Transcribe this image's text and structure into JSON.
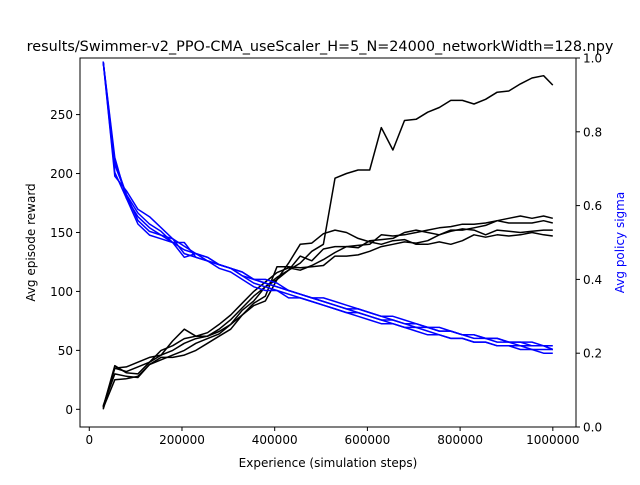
{
  "chart_data": {
    "type": "line",
    "title": "results/Swimmer-v2_PPO-CMA_useScaler_H=5_N=24000_networkWidth=128.npy",
    "xlabel": "Experience (simulation steps)",
    "ylabel": "Avg episode reward",
    "y2label": "Avg policy sigma",
    "xlim": [
      -20000,
      1050000
    ],
    "ylim": [
      -15,
      298
    ],
    "y2lim": [
      0.0,
      1.0
    ],
    "x_ticks": [
      0,
      200000,
      400000,
      600000,
      800000,
      1000000
    ],
    "y_ticks": [
      0,
      50,
      100,
      150,
      200,
      250
    ],
    "y2_ticks": [
      0.0,
      0.2,
      0.4,
      0.6,
      0.8,
      1.0
    ],
    "x_tick_labels": [
      "0",
      "200000",
      "400000",
      "600000",
      "800000",
      "1000000"
    ],
    "y_tick_labels": [
      "0",
      "50",
      "100",
      "150",
      "200",
      "250"
    ],
    "y2_tick_labels": [
      "0.0",
      "0.2",
      "0.4",
      "0.6",
      "0.8",
      "1.0"
    ],
    "grid": false,
    "colors": {
      "reward": "#000000",
      "sigma": "#0000ff",
      "frame": "#000000"
    },
    "reward_series": [
      {
        "x": [
          30000,
          55000,
          80000,
          105000,
          130000,
          155000,
          180000,
          205000,
          230000,
          255000,
          280000,
          305000,
          330000,
          355000,
          380000,
          405000,
          430000,
          455000,
          480000,
          505000,
          530000,
          555000,
          580000,
          605000,
          630000,
          655000,
          680000,
          705000,
          730000,
          755000,
          780000,
          805000,
          830000,
          855000,
          880000,
          905000,
          930000,
          955000,
          980000,
          1000000
        ],
        "y": [
          0,
          35,
          36,
          40,
          44,
          46,
          58,
          68,
          62,
          62,
          66,
          72,
          84,
          92,
          104,
          112,
          118,
          124,
          134,
          140,
          196,
          200,
          203,
          203,
          239,
          220,
          245,
          246,
          252,
          256,
          262,
          262,
          259,
          263,
          269,
          270,
          276,
          281,
          283,
          275
        ]
      },
      {
        "x": [
          30000,
          55000,
          80000,
          105000,
          130000,
          155000,
          180000,
          205000,
          230000,
          255000,
          280000,
          305000,
          330000,
          355000,
          380000,
          405000,
          430000,
          455000,
          480000,
          505000,
          530000,
          555000,
          580000,
          605000,
          630000,
          655000,
          680000,
          705000,
          730000,
          755000,
          780000,
          805000,
          830000,
          855000,
          880000,
          905000,
          930000,
          955000,
          980000,
          1000000
        ],
        "y": [
          2,
          37,
          31,
          30,
          40,
          50,
          54,
          60,
          62,
          65,
          72,
          80,
          90,
          100,
          108,
          116,
          120,
          118,
          122,
          127,
          133,
          138,
          137,
          143,
          144,
          145,
          150,
          152,
          150,
          148,
          151,
          153,
          152,
          148,
          152,
          151,
          150,
          151,
          152,
          152
        ]
      },
      {
        "x": [
          30000,
          55000,
          80000,
          105000,
          130000,
          155000,
          180000,
          205000,
          230000,
          255000,
          280000,
          305000,
          330000,
          355000,
          380000,
          405000,
          430000,
          455000,
          480000,
          505000,
          530000,
          555000,
          580000,
          605000,
          630000,
          655000,
          680000,
          705000,
          730000,
          755000,
          780000,
          805000,
          830000,
          855000,
          880000,
          905000,
          930000,
          955000,
          980000,
          1000000
        ],
        "y": [
          3,
          30,
          28,
          27,
          38,
          44,
          44,
          46,
          50,
          56,
          62,
          68,
          80,
          90,
          96,
          121,
          121,
          120,
          121,
          122,
          130,
          130,
          131,
          134,
          138,
          140,
          142,
          141,
          143,
          148,
          152,
          152,
          154,
          156,
          160,
          158,
          158,
          158,
          160,
          158
        ]
      },
      {
        "x": [
          30000,
          55000,
          80000,
          105000,
          130000,
          155000,
          180000,
          205000,
          230000,
          255000,
          280000,
          305000,
          330000,
          355000,
          380000,
          405000,
          430000,
          455000,
          480000,
          505000,
          530000,
          555000,
          580000,
          605000,
          630000,
          655000,
          680000,
          705000,
          730000,
          755000,
          780000,
          805000,
          830000,
          855000,
          880000,
          905000,
          930000,
          955000,
          980000,
          1000000
        ],
        "y": [
          1,
          25,
          26,
          28,
          38,
          42,
          46,
          50,
          56,
          60,
          64,
          72,
          80,
          88,
          92,
          110,
          124,
          140,
          141,
          149,
          152,
          150,
          145,
          142,
          140,
          143,
          144,
          140,
          140,
          142,
          140,
          143,
          148,
          146,
          148,
          147,
          148,
          150,
          148,
          147
        ]
      },
      {
        "x": [
          30000,
          55000,
          80000,
          105000,
          130000,
          155000,
          180000,
          205000,
          230000,
          255000,
          280000,
          305000,
          330000,
          355000,
          380000,
          405000,
          430000,
          455000,
          480000,
          505000,
          530000,
          555000,
          580000,
          605000,
          630000,
          655000,
          680000,
          705000,
          730000,
          755000,
          780000,
          805000,
          830000,
          855000,
          880000,
          905000,
          930000,
          955000,
          980000,
          1000000
        ],
        "y": [
          2,
          35,
          32,
          36,
          40,
          46,
          50,
          56,
          60,
          62,
          68,
          76,
          86,
          96,
          104,
          110,
          118,
          130,
          126,
          136,
          138,
          138,
          139,
          140,
          148,
          147,
          148,
          150,
          152,
          154,
          155,
          157,
          157,
          158,
          160,
          162,
          164,
          162,
          164,
          162
        ]
      }
    ],
    "sigma_series": [
      {
        "x": [
          30000,
          55000,
          80000,
          105000,
          130000,
          155000,
          180000,
          205000,
          230000,
          255000,
          280000,
          305000,
          330000,
          355000,
          380000,
          405000,
          430000,
          455000,
          480000,
          505000,
          530000,
          555000,
          580000,
          605000,
          630000,
          655000,
          680000,
          705000,
          730000,
          755000,
          780000,
          805000,
          830000,
          855000,
          880000,
          905000,
          930000,
          955000,
          980000,
          1000000
        ],
        "y": [
          0.99,
          0.72,
          0.63,
          0.56,
          0.53,
          0.52,
          0.51,
          0.49,
          0.47,
          0.46,
          0.44,
          0.43,
          0.42,
          0.4,
          0.4,
          0.39,
          0.37,
          0.36,
          0.35,
          0.34,
          0.33,
          0.32,
          0.31,
          0.3,
          0.29,
          0.28,
          0.27,
          0.27,
          0.26,
          0.25,
          0.24,
          0.24,
          0.23,
          0.23,
          0.22,
          0.22,
          0.21,
          0.21,
          0.2,
          0.2
        ]
      },
      {
        "x": [
          30000,
          55000,
          80000,
          105000,
          130000,
          155000,
          180000,
          205000,
          230000,
          255000,
          280000,
          305000,
          330000,
          355000,
          380000,
          405000,
          430000,
          455000,
          480000,
          505000,
          530000,
          555000,
          580000,
          605000,
          630000,
          655000,
          680000,
          705000,
          730000,
          755000,
          780000,
          805000,
          830000,
          855000,
          880000,
          905000,
          930000,
          955000,
          980000,
          1000000
        ],
        "y": [
          0.99,
          0.68,
          0.64,
          0.59,
          0.57,
          0.54,
          0.51,
          0.47,
          0.46,
          0.45,
          0.44,
          0.43,
          0.41,
          0.39,
          0.38,
          0.37,
          0.35,
          0.35,
          0.34,
          0.33,
          0.32,
          0.31,
          0.3,
          0.29,
          0.28,
          0.28,
          0.27,
          0.26,
          0.25,
          0.25,
          0.24,
          0.24,
          0.23,
          0.23,
          0.22,
          0.22,
          0.22,
          0.21,
          0.21,
          0.21
        ]
      },
      {
        "x": [
          30000,
          55000,
          80000,
          105000,
          130000,
          155000,
          180000,
          205000,
          230000,
          255000,
          280000,
          305000,
          330000,
          355000,
          380000,
          405000,
          430000,
          455000,
          480000,
          505000,
          530000,
          555000,
          580000,
          605000,
          630000,
          655000,
          680000,
          705000,
          730000,
          755000,
          780000,
          805000,
          830000,
          855000,
          880000,
          905000,
          930000,
          955000,
          980000,
          1000000
        ],
        "y": [
          0.99,
          0.73,
          0.62,
          0.55,
          0.52,
          0.51,
          0.5,
          0.46,
          0.47,
          0.45,
          0.43,
          0.42,
          0.4,
          0.38,
          0.37,
          0.37,
          0.36,
          0.35,
          0.34,
          0.33,
          0.32,
          0.31,
          0.31,
          0.3,
          0.29,
          0.29,
          0.28,
          0.27,
          0.27,
          0.26,
          0.26,
          0.25,
          0.24,
          0.24,
          0.23,
          0.23,
          0.22,
          0.22,
          0.22,
          0.21
        ]
      },
      {
        "x": [
          30000,
          55000,
          80000,
          105000,
          130000,
          155000,
          180000,
          205000,
          230000,
          255000,
          280000,
          305000,
          330000,
          355000,
          380000,
          405000,
          430000,
          455000,
          480000,
          505000,
          530000,
          555000,
          580000,
          605000,
          630000,
          655000,
          680000,
          705000,
          730000,
          755000,
          780000,
          805000,
          830000,
          855000,
          880000,
          905000,
          930000,
          955000,
          980000,
          1000000
        ],
        "y": [
          0.99,
          0.69,
          0.62,
          0.57,
          0.54,
          0.52,
          0.5,
          0.5,
          0.46,
          0.45,
          0.44,
          0.43,
          0.41,
          0.4,
          0.39,
          0.38,
          0.37,
          0.36,
          0.35,
          0.34,
          0.33,
          0.32,
          0.32,
          0.31,
          0.3,
          0.29,
          0.28,
          0.28,
          0.27,
          0.26,
          0.26,
          0.25,
          0.25,
          0.24,
          0.24,
          0.23,
          0.23,
          0.22,
          0.22,
          0.21
        ]
      },
      {
        "x": [
          30000,
          55000,
          80000,
          105000,
          130000,
          155000,
          180000,
          205000,
          230000,
          255000,
          280000,
          305000,
          330000,
          355000,
          380000,
          405000,
          430000,
          455000,
          480000,
          505000,
          530000,
          555000,
          580000,
          605000,
          630000,
          655000,
          680000,
          705000,
          730000,
          755000,
          780000,
          805000,
          830000,
          855000,
          880000,
          905000,
          930000,
          955000,
          980000,
          1000000
        ],
        "y": [
          0.99,
          0.71,
          0.63,
          0.58,
          0.55,
          0.53,
          0.5,
          0.48,
          0.47,
          0.46,
          0.44,
          0.43,
          0.42,
          0.4,
          0.39,
          0.38,
          0.37,
          0.36,
          0.35,
          0.35,
          0.34,
          0.33,
          0.32,
          0.31,
          0.3,
          0.3,
          0.29,
          0.28,
          0.27,
          0.27,
          0.26,
          0.25,
          0.25,
          0.24,
          0.24,
          0.23,
          0.23,
          0.23,
          0.22,
          0.22
        ]
      }
    ]
  }
}
